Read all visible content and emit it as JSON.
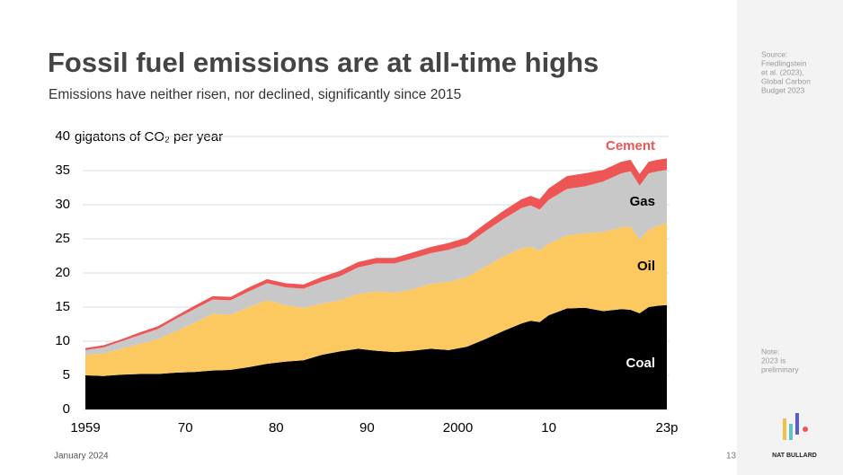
{
  "chart_data": {
    "type": "stacked_area",
    "title": "Fossil fuel emissions are at all-time highs",
    "subtitle": "Emissions have neither risen, nor declined, significantly since 2015",
    "y_label": "gigatons of CO₂ per year",
    "x": [
      1959,
      1961,
      1963,
      1965,
      1967,
      1969,
      1971,
      1973,
      1975,
      1977,
      1979,
      1981,
      1983,
      1985,
      1987,
      1989,
      1991,
      1993,
      1995,
      1997,
      1999,
      2001,
      2003,
      2005,
      2007,
      2008,
      2009,
      2010,
      2012,
      2014,
      2016,
      2018,
      2019,
      2020,
      2021,
      2022,
      2023
    ],
    "series": [
      {
        "name": "Coal",
        "color": "#000000",
        "values": [
          5.0,
          4.9,
          5.1,
          5.2,
          5.2,
          5.4,
          5.5,
          5.7,
          5.8,
          6.2,
          6.7,
          7.0,
          7.2,
          8.0,
          8.5,
          8.9,
          8.6,
          8.4,
          8.6,
          8.9,
          8.7,
          9.2,
          10.3,
          11.5,
          12.6,
          13.0,
          12.8,
          13.8,
          14.8,
          14.9,
          14.4,
          14.7,
          14.6,
          14.1,
          15.0,
          15.2,
          15.3
        ]
      },
      {
        "name": "Oil",
        "color": "#fcc860",
        "values": [
          3.0,
          3.3,
          3.8,
          4.4,
          5.1,
          6.1,
          7.2,
          8.3,
          8.1,
          8.8,
          9.3,
          8.3,
          7.7,
          7.5,
          7.5,
          8.0,
          8.7,
          8.7,
          9.0,
          9.5,
          10.0,
          10.2,
          10.6,
          10.9,
          11.0,
          10.8,
          10.5,
          10.5,
          10.7,
          10.9,
          11.6,
          12.0,
          12.2,
          10.8,
          11.3,
          11.7,
          12.0
        ]
      },
      {
        "name": "Gas",
        "color": "#c8c8c8",
        "values": [
          0.7,
          0.9,
          1.1,
          1.3,
          1.5,
          1.8,
          2.0,
          2.1,
          2.1,
          2.3,
          2.5,
          2.6,
          2.8,
          3.2,
          3.5,
          3.9,
          4.1,
          4.3,
          4.5,
          4.5,
          4.7,
          4.8,
          5.2,
          5.5,
          5.9,
          6.1,
          6.0,
          6.4,
          6.8,
          6.9,
          7.4,
          7.9,
          8.1,
          7.9,
          8.3,
          8.0,
          7.8
        ]
      },
      {
        "name": "Cement",
        "color": "#ee5656",
        "values": [
          0.3,
          0.3,
          0.3,
          0.4,
          0.4,
          0.4,
          0.5,
          0.5,
          0.5,
          0.6,
          0.6,
          0.6,
          0.6,
          0.7,
          0.8,
          0.8,
          0.8,
          0.8,
          0.9,
          0.9,
          1.0,
          1.0,
          1.1,
          1.2,
          1.3,
          1.4,
          1.5,
          1.7,
          1.9,
          1.9,
          1.7,
          1.7,
          1.7,
          1.7,
          1.7,
          1.7,
          1.7
        ]
      }
    ],
    "xlim": [
      1959,
      2023
    ],
    "xticks": [
      1959,
      {
        "value": 1970,
        "label": "70"
      },
      {
        "value": 1980,
        "label": "80"
      },
      {
        "value": 1990,
        "label": "90"
      },
      2000,
      {
        "value": 2010,
        "label": "10"
      },
      {
        "value": 2023,
        "label": "23p"
      }
    ],
    "ylim": [
      0,
      40
    ],
    "yticks": [
      0,
      5,
      10,
      15,
      20,
      25,
      30,
      35,
      40
    ],
    "grid": true
  },
  "footer": {
    "date": "January 2024",
    "page": "13"
  },
  "sidebar": {
    "source": [
      "Source:",
      "Friedlingstein",
      "et al. (2023),",
      "Global Carbon",
      "Budget 2023"
    ],
    "note": [
      "Note:",
      "2023 is",
      "preliminary"
    ],
    "brand": "NAT BULLARD"
  }
}
